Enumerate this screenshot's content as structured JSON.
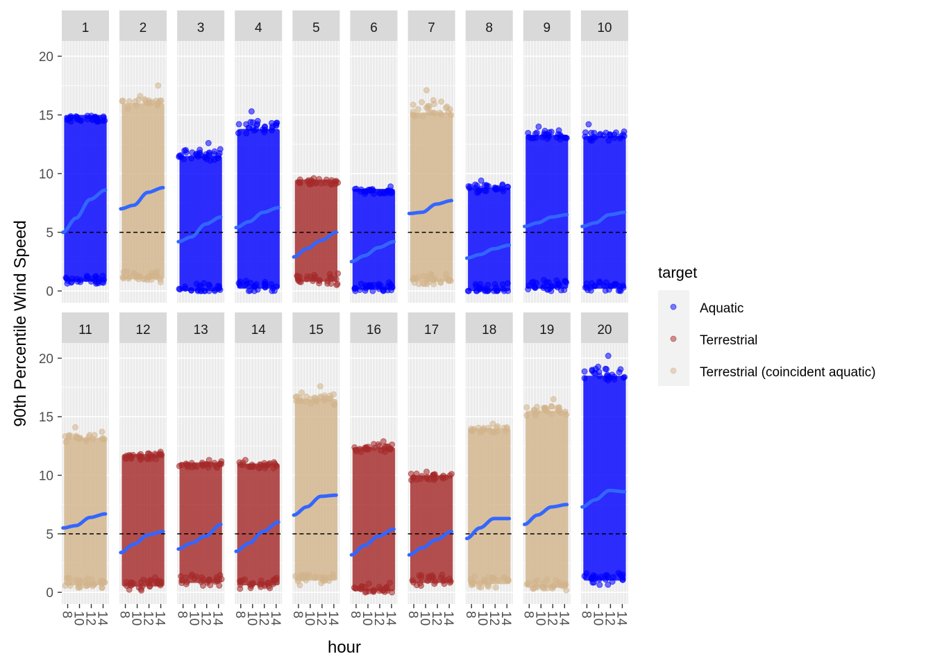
{
  "chart_data": {
    "type": "scatter",
    "xlabel": "hour",
    "ylabel": "90th Percentile Wind Speed",
    "ylim": [
      0,
      20
    ],
    "y_ticks": [
      0,
      5,
      10,
      15,
      20
    ],
    "x_range": [
      7,
      15
    ],
    "x_ticks": [
      8,
      10,
      12,
      14
    ],
    "x_tick_labels": [
      "8",
      "10",
      "12",
      "14"
    ],
    "reference_line": {
      "y": 5,
      "style": "dashed",
      "color": "#000000"
    },
    "grid": true,
    "legend": {
      "title": "target",
      "placement": "right",
      "entries": [
        {
          "label": "Aquatic",
          "color": "#0000ff"
        },
        {
          "label": "Terrestrial",
          "color": "#a52a2a"
        },
        {
          "label": "Terrestrial (coincident aquatic)",
          "color": "#d2b48c"
        }
      ]
    },
    "smooth_color": "#3366ff",
    "facets": [
      {
        "label": "1",
        "target": "Aquatic",
        "min": 0.8,
        "max": 15.0,
        "outlier": 14.8,
        "smooth": [
          5.0,
          6.2,
          7.8,
          8.6
        ]
      },
      {
        "label": "2",
        "target": "Terrestrial (coincident aquatic)",
        "min": 1.0,
        "max": 16.0,
        "outlier": 17.5,
        "smooth": [
          7.0,
          7.3,
          8.4,
          8.8
        ]
      },
      {
        "label": "3",
        "target": "Aquatic",
        "min": 0.0,
        "max": 11.5,
        "outlier": 12.6,
        "smooth": [
          4.2,
          4.6,
          5.7,
          6.3
        ]
      },
      {
        "label": "4",
        "target": "Aquatic",
        "min": 0.2,
        "max": 13.8,
        "outlier": 15.3,
        "smooth": [
          5.4,
          5.9,
          6.7,
          7.1
        ]
      },
      {
        "label": "5",
        "target": "Terrestrial",
        "min": 0.8,
        "max": 9.5,
        "outlier": 9.6,
        "smooth": [
          2.9,
          3.6,
          4.3,
          5.0
        ]
      },
      {
        "label": "6",
        "target": "Aquatic",
        "min": 0.1,
        "max": 8.7,
        "outlier": 8.9,
        "smooth": [
          2.5,
          3.0,
          3.7,
          4.2
        ]
      },
      {
        "label": "7",
        "target": "Terrestrial (coincident aquatic)",
        "min": 0.8,
        "max": 15.2,
        "outlier": 17.1,
        "smooth": [
          6.6,
          6.7,
          7.4,
          7.7
        ]
      },
      {
        "label": "8",
        "target": "Aquatic",
        "min": 0.0,
        "max": 8.8,
        "outlier": 9.4,
        "smooth": [
          2.8,
          3.1,
          3.6,
          3.9
        ]
      },
      {
        "label": "9",
        "target": "Aquatic",
        "min": 0.2,
        "max": 13.3,
        "outlier": 14.0,
        "smooth": [
          5.5,
          5.8,
          6.3,
          6.5
        ]
      },
      {
        "label": "10",
        "target": "Aquatic",
        "min": 0.2,
        "max": 13.2,
        "outlier": 14.2,
        "smooth": [
          5.5,
          5.8,
          6.5,
          6.7
        ]
      },
      {
        "label": "11",
        "target": "Terrestrial (coincident aquatic)",
        "min": 0.6,
        "max": 13.2,
        "outlier": 14.1,
        "smooth": [
          5.5,
          5.7,
          6.4,
          6.7
        ]
      },
      {
        "label": "12",
        "target": "Terrestrial",
        "min": 0.5,
        "max": 11.8,
        "outlier": 12.0,
        "smooth": [
          3.4,
          4.1,
          4.9,
          5.2
        ]
      },
      {
        "label": "13",
        "target": "Terrestrial",
        "min": 0.8,
        "max": 11.1,
        "outlier": 11.3,
        "smooth": [
          3.7,
          4.2,
          4.8,
          5.8
        ]
      },
      {
        "label": "14",
        "target": "Terrestrial",
        "min": 0.6,
        "max": 11.0,
        "outlier": 11.3,
        "smooth": [
          3.5,
          4.2,
          5.2,
          6.0
        ]
      },
      {
        "label": "15",
        "target": "Terrestrial (coincident aquatic)",
        "min": 1.0,
        "max": 16.5,
        "outlier": 17.6,
        "smooth": [
          6.6,
          7.3,
          8.2,
          8.3
        ]
      },
      {
        "label": "16",
        "target": "Terrestrial",
        "min": 0.1,
        "max": 12.4,
        "outlier": 12.9,
        "smooth": [
          3.2,
          4.0,
          4.8,
          5.4
        ]
      },
      {
        "label": "17",
        "target": "Terrestrial",
        "min": 0.8,
        "max": 10.0,
        "outlier": 10.3,
        "smooth": [
          3.2,
          3.8,
          4.5,
          5.2
        ]
      },
      {
        "label": "18",
        "target": "Terrestrial (coincident aquatic)",
        "min": 0.7,
        "max": 14.0,
        "outlier": 14.4,
        "smooth": [
          4.6,
          5.5,
          6.3,
          6.3
        ]
      },
      {
        "label": "19",
        "target": "Terrestrial (coincident aquatic)",
        "min": 0.4,
        "max": 15.5,
        "outlier": 16.5,
        "smooth": [
          5.8,
          6.6,
          7.3,
          7.5
        ]
      },
      {
        "label": "20",
        "target": "Aquatic",
        "min": 1.0,
        "max": 18.5,
        "outlier": 20.2,
        "smooth": [
          7.3,
          7.9,
          8.7,
          8.6
        ]
      }
    ]
  }
}
